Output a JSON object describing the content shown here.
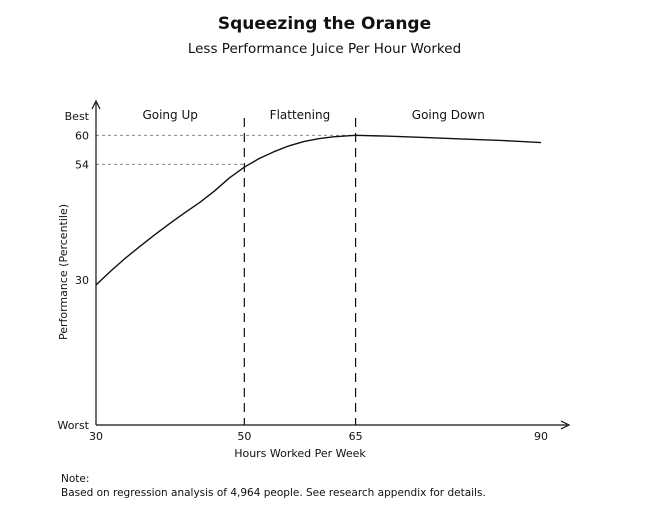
{
  "chart_data": {
    "type": "line",
    "title": "Squeezing the Orange",
    "subtitle": "Less Performance Juice Per Hour Worked",
    "xlabel": "Hours Worked Per Week",
    "ylabel": "Performance (Percentile)",
    "xlim": [
      30,
      92
    ],
    "ylim": [
      0,
      64
    ],
    "x_ticks": [
      {
        "value": 30,
        "label": "30"
      },
      {
        "value": 50,
        "label": "50"
      },
      {
        "value": 65,
        "label": "65"
      },
      {
        "value": 90,
        "label": "90"
      }
    ],
    "y_ticks": [
      {
        "value": 0,
        "label": "Worst"
      },
      {
        "value": 30,
        "label": "30"
      },
      {
        "value": 54,
        "label": "54"
      },
      {
        "value": 60,
        "label": "60"
      },
      {
        "value": 64,
        "label": "Best"
      }
    ],
    "series": [
      {
        "x": [
          30,
          32,
          34,
          36,
          38,
          40,
          42,
          44,
          46,
          48,
          50,
          52,
          54,
          56,
          58,
          60,
          62,
          64,
          65,
          70,
          75,
          80,
          85,
          90
        ],
        "y": [
          29,
          31.9,
          34.6,
          37.1,
          39.5,
          41.8,
          44.0,
          46.1,
          48.5,
          51.2,
          53.4,
          55.2,
          56.6,
          57.8,
          58.7,
          59.3,
          59.7,
          59.9,
          60,
          59.8,
          59.5,
          59.2,
          58.9,
          58.5
        ],
        "color": "#111111"
      }
    ],
    "dividers": [
      50,
      65
    ],
    "reference_lines": [
      {
        "y": 60,
        "x_end": 65
      },
      {
        "y": 54,
        "x_end": 50
      }
    ],
    "regions": [
      {
        "label": "Going Up",
        "x_start": 30,
        "x_end": 50
      },
      {
        "label": "Flattening",
        "x_start": 50,
        "x_end": 65
      },
      {
        "label": "Going Down",
        "x_start": 65,
        "x_end": 90
      }
    ],
    "grid": false,
    "note": [
      "Note:",
      "Based on regression analysis of 4,964 people. See research appendix for details."
    ]
  }
}
